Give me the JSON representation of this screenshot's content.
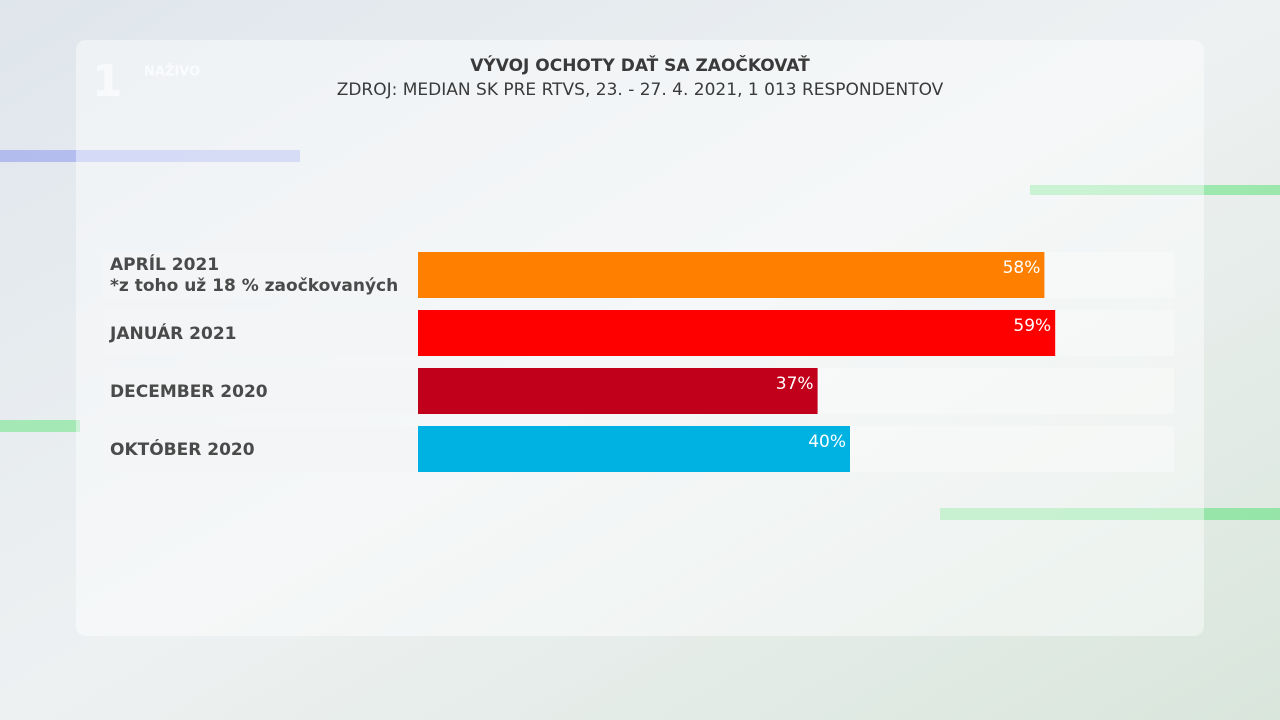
{
  "chart_data": {
    "type": "hbar",
    "title": "VÝVOJ OCHOTY DAŤ SA ZAOČKOVAŤ",
    "subtitle": "ZDROJ: MEDIAN SK PRE RTVS, 23. - 27. 4. 2021, 1 013 RESPONDENTOV",
    "channel": "NAŽIVO",
    "categories": [
      "APRÍL 2021",
      "JANUÁR 2021",
      "DECEMBER 2020",
      "OKTÓBER 2020"
    ],
    "note": "*z toho už 18 % zaočkovaných",
    "values": [
      58,
      59,
      37,
      40
    ],
    "value_labels": [
      "58%",
      "59%",
      "37%",
      "40%"
    ],
    "colors": [
      "#ff8000",
      "#ff0000",
      "#c1001c",
      "#00b2e2"
    ],
    "xlim": [
      0,
      70
    ]
  }
}
